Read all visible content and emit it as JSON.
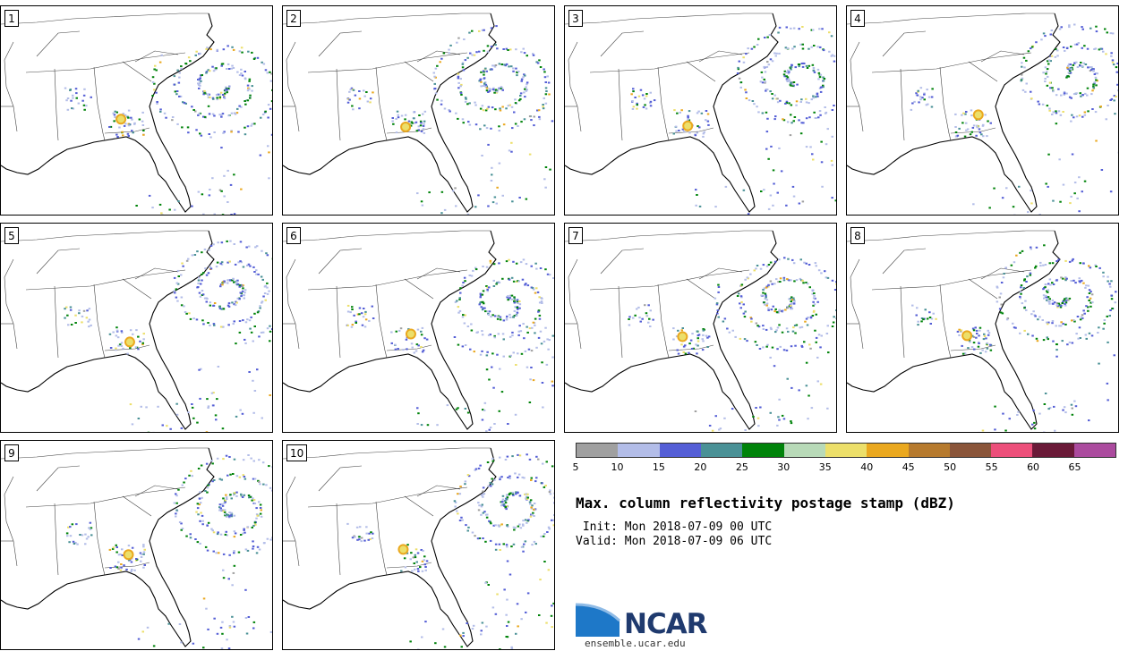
{
  "panels": [
    {
      "label": "1"
    },
    {
      "label": "2"
    },
    {
      "label": "3"
    },
    {
      "label": "4"
    },
    {
      "label": "5"
    },
    {
      "label": "6"
    },
    {
      "label": "7"
    },
    {
      "label": "8"
    },
    {
      "label": "9"
    },
    {
      "label": "10"
    }
  ],
  "colorbar": {
    "colors": [
      "#a0a0a0",
      "#b3bde8",
      "#545ed6",
      "#4a9196",
      "#00830a",
      "#b8dab8",
      "#ecdf6a",
      "#eaa81f",
      "#b67a2e",
      "#8a553a",
      "#ec4f7a",
      "#6a1a38",
      "#ab4b9e"
    ],
    "ticks": [
      "5",
      "10",
      "15",
      "20",
      "25",
      "30",
      "35",
      "40",
      "45",
      "50",
      "55",
      "60",
      "65"
    ]
  },
  "title": "Max. column reflectivity postage stamp (dBZ)",
  "init": " Init: Mon 2018-07-09 00 UTC",
  "valid": "Valid: Mon 2018-07-09 06 UTC",
  "logo": {
    "name": "NCAR",
    "url": "ensemble.ucar.edu"
  }
}
